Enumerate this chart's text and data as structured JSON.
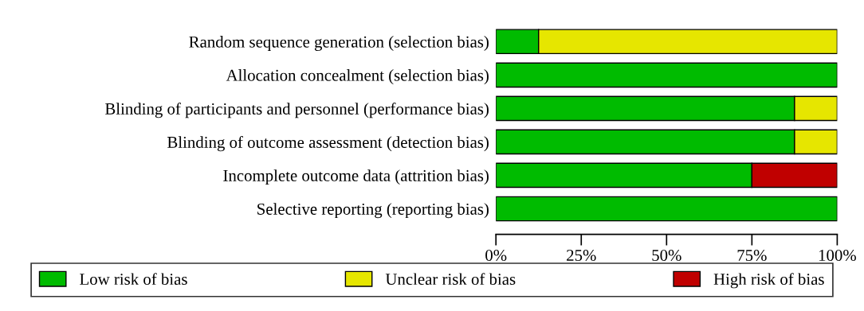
{
  "chart_data": {
    "type": "bar",
    "orientation": "horizontal",
    "stacked": true,
    "categories": [
      "Random sequence generation (selection bias)",
      "Allocation concealment (selection bias)",
      "Blinding of participants and personnel (performance bias)",
      "Blinding of outcome assessment (detection bias)",
      "Incomplete outcome data (attrition bias)",
      "Selective reporting (reporting bias)"
    ],
    "series": [
      {
        "name": "Low risk of bias",
        "color": "#00bb00",
        "values": [
          12.5,
          100,
          87.5,
          87.5,
          75,
          100
        ]
      },
      {
        "name": "Unclear risk of bias",
        "color": "#e6e600",
        "values": [
          87.5,
          null,
          12.5,
          12.5,
          null,
          null
        ]
      },
      {
        "name": "High risk of bias",
        "color": "#c00000",
        "values": [
          null,
          null,
          null,
          null,
          25,
          null
        ]
      }
    ],
    "xlim": [
      0,
      100
    ],
    "xticks": [
      {
        "value": 0,
        "label": "0%"
      },
      {
        "value": 25,
        "label": "25%"
      },
      {
        "value": 50,
        "label": "50%"
      },
      {
        "value": 75,
        "label": "75%"
      },
      {
        "value": 100,
        "label": "100%"
      }
    ],
    "grid": false,
    "legend": "bottom"
  }
}
